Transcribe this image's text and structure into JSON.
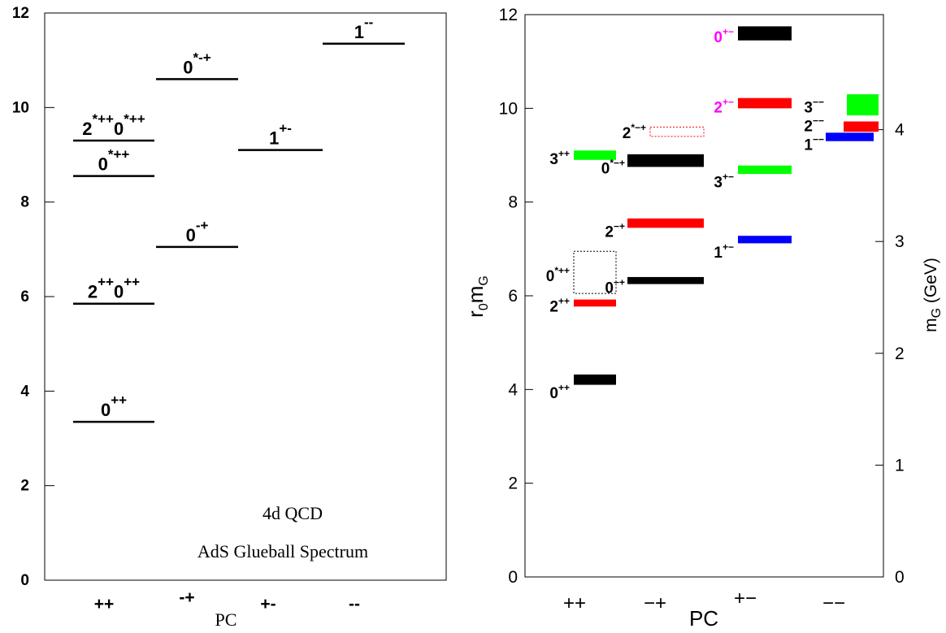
{
  "chart_data": [
    {
      "type": "level-spectrum",
      "annotation_lines": [
        "4d  QCD",
        "AdS Glueball Spectrum"
      ],
      "xlabel": "PC",
      "ylim": [
        0,
        12
      ],
      "yticks": [
        "0",
        "2",
        "4",
        "6",
        "8",
        "10",
        "12"
      ],
      "categories": [
        "++",
        "-+",
        "+-",
        "--"
      ],
      "levels": [
        {
          "category": "++",
          "value": 3.35,
          "label": [
            "0",
            "++"
          ]
        },
        {
          "category": "++",
          "value": 5.85,
          "label": [
            "2",
            "++",
            "0",
            "++"
          ]
        },
        {
          "category": "++",
          "value": 8.55,
          "label": [
            "0",
            "*++"
          ]
        },
        {
          "category": "++",
          "value": 9.3,
          "label": [
            "2",
            "*++",
            "0",
            "*++"
          ]
        },
        {
          "category": "-+",
          "value": 7.05,
          "label": [
            "0",
            "-+"
          ]
        },
        {
          "category": "-+",
          "value": 10.6,
          "label": [
            "0",
            "*-+"
          ]
        },
        {
          "category": "+-",
          "value": 9.1,
          "label": [
            "1",
            "+-"
          ]
        },
        {
          "category": "--",
          "value": 11.35,
          "label": [
            "1",
            "--"
          ]
        }
      ]
    },
    {
      "type": "level-spectrum",
      "xlabel": "PC",
      "ylabel": [
        "r",
        "0",
        "m",
        "G"
      ],
      "ylabel_right": [
        "m",
        "G",
        " (GeV)"
      ],
      "ylim": [
        0,
        12
      ],
      "yticks": [
        "0",
        "2",
        "4",
        "6",
        "8",
        "10",
        "12"
      ],
      "ylim_right_gev": [
        0,
        5
      ],
      "yticks_right": [
        "0",
        "1",
        "2",
        "3",
        "4"
      ],
      "categories": [
        "++",
        "−+",
        "+−",
        "−−"
      ],
      "states": [
        {
          "category": "++",
          "low": 4.1,
          "high": 4.32,
          "color": "#000000",
          "label": [
            "0",
            "++"
          ],
          "label_color": "#000000",
          "label_value": 3.95
        },
        {
          "category": "++",
          "low": 5.77,
          "high": 5.92,
          "color": "#ff0000",
          "label": [
            "2",
            "++"
          ],
          "label_color": "#000000",
          "label_value": 5.8
        },
        {
          "category": "++",
          "low": 6.05,
          "high": 6.95,
          "color": "#000000",
          "style": "dotted",
          "label": [
            "0",
            "*++"
          ],
          "label_color": "#000000",
          "label_value": 6.45
        },
        {
          "category": "++",
          "low": 8.9,
          "high": 9.1,
          "color": "#00ff00",
          "label": [
            "3",
            "++"
          ],
          "label_color": "#000000",
          "label_value": 8.95
        },
        {
          "category": "−+",
          "low": 6.25,
          "high": 6.4,
          "color": "#000000",
          "label": [
            "0",
            "−+"
          ],
          "label_color": "#000000",
          "label_value": 6.2
        },
        {
          "category": "−+",
          "low": 7.45,
          "high": 7.65,
          "color": "#ff0000",
          "label": [
            "2",
            "−+"
          ],
          "label_color": "#000000",
          "label_value": 7.4
        },
        {
          "category": "−+",
          "low": 8.75,
          "high": 9.02,
          "color": "#000000",
          "label": [
            "0",
            "*−+"
          ],
          "label_color": "#000000",
          "label_value": 8.75
        },
        {
          "category": "−+",
          "low": 9.4,
          "high": 9.6,
          "color": "#ff0000",
          "style": "dotted",
          "label": [
            "2",
            "*−+"
          ],
          "label_color": "#000000",
          "label_value": 9.5
        },
        {
          "category": "+−",
          "low": 7.12,
          "high": 7.28,
          "color": "#0000ff",
          "label": [
            "1",
            "+−"
          ],
          "label_color": "#000000",
          "label_value": 6.95
        },
        {
          "category": "+−",
          "low": 8.6,
          "high": 8.78,
          "color": "#00ff00",
          "label": [
            "3",
            "+−"
          ],
          "label_color": "#000000",
          "label_value": 8.45
        },
        {
          "category": "+−",
          "low": 10.0,
          "high": 10.22,
          "color": "#ff0000",
          "label": [
            "2",
            "+−"
          ],
          "label_color": "#ff00ff",
          "label_value": 10.05
        },
        {
          "category": "+−",
          "low": 11.45,
          "high": 11.75,
          "color": "#000000",
          "label": [
            "0",
            "+−"
          ],
          "label_color": "#ff00ff",
          "label_value": 11.55
        },
        {
          "category": "−−",
          "low": 9.3,
          "high": 9.48,
          "color": "#0000ff",
          "label": [
            "1",
            "−−"
          ],
          "label_color": "#000000",
          "label_value": 9.25
        },
        {
          "category": "−−",
          "low": 9.5,
          "high": 9.72,
          "color": "#ff0000",
          "label": [
            "2",
            "−−"
          ],
          "label_color": "#000000",
          "label_value": 9.65
        },
        {
          "category": "−−",
          "low": 9.85,
          "high": 10.3,
          "color": "#00ff00",
          "label": [
            "3",
            "−−"
          ],
          "label_color": "#000000",
          "label_value": 10.05
        }
      ]
    }
  ]
}
